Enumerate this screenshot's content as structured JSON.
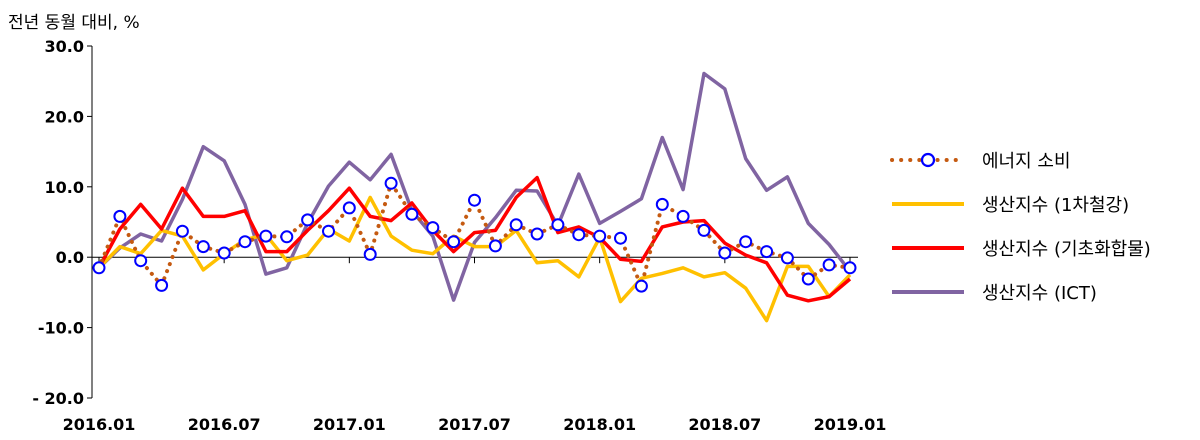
{
  "chart_data": {
    "type": "line",
    "ylabel": "전년 동월 대비, %",
    "ylim": [
      -20,
      30
    ],
    "yticks": [
      30,
      20,
      10,
      0,
      -10,
      -20
    ],
    "ytick_labels": [
      "30.0",
      "20.0",
      "10.0",
      "0.0",
      "-10.0",
      "- 20.0"
    ],
    "xtick_labels": [
      "2016.01",
      "2016.07",
      "2017.01",
      "2017.07",
      "2018.01",
      "2018.07",
      "2019.01"
    ],
    "x": [
      "2016.01",
      "2016.02",
      "2016.03",
      "2016.04",
      "2016.05",
      "2016.06",
      "2016.07",
      "2016.08",
      "2016.09",
      "2016.10",
      "2016.11",
      "2016.12",
      "2017.01",
      "2017.02",
      "2017.03",
      "2017.04",
      "2017.05",
      "2017.06",
      "2017.07",
      "2017.08",
      "2017.09",
      "2017.10",
      "2017.11",
      "2017.12",
      "2018.01",
      "2018.02",
      "2018.03",
      "2018.04",
      "2018.05",
      "2018.06",
      "2018.07",
      "2018.08",
      "2018.09",
      "2018.10",
      "2018.11",
      "2018.12",
      "2019.01"
    ],
    "series": [
      {
        "name": "에너지 소비",
        "color": "#C55A11",
        "values": [
          -1.5,
          5.8,
          -0.5,
          -4.0,
          3.7,
          1.5,
          0.6,
          2.2,
          3.0,
          2.9,
          5.3,
          3.7,
          7.0,
          0.4,
          10.5,
          6.1,
          4.2,
          2.2,
          8.1,
          1.6,
          4.6,
          3.3,
          4.6,
          3.2,
          3.0,
          2.7,
          -4.1,
          7.5,
          5.8,
          3.8,
          0.6,
          2.2,
          0.8,
          -0.1,
          -3.1,
          -1.1,
          -1.5
        ]
      },
      {
        "name": "생산지수 (1차철강)",
        "color": "#FFC000",
        "values": [
          -1.5,
          1.5,
          0.5,
          3.8,
          3.0,
          -1.8,
          0.5,
          2.5,
          3.2,
          -0.5,
          0.3,
          4.0,
          2.3,
          8.5,
          3.0,
          1.0,
          0.5,
          3.0,
          1.5,
          1.5,
          3.8,
          -0.8,
          -0.5,
          -2.8,
          2.8,
          -6.3,
          -3.0,
          -2.3,
          -1.5,
          -2.8,
          -2.2,
          -4.4,
          -9.0,
          -1.3,
          -1.3,
          -5.6,
          -2.5
        ]
      },
      {
        "name": "생산지수 (기초화합물)",
        "color": "#FF0000",
        "values": [
          -1.5,
          4.0,
          7.5,
          4.0,
          9.8,
          5.8,
          5.8,
          6.6,
          0.8,
          0.8,
          3.8,
          6.6,
          9.8,
          5.8,
          5.2,
          7.7,
          3.8,
          0.8,
          3.5,
          3.8,
          8.5,
          11.3,
          3.5,
          4.3,
          2.8,
          -0.3,
          -0.6,
          4.3,
          5.0,
          5.2,
          2.0,
          0.3,
          -0.8,
          -5.4,
          -6.2,
          -5.6,
          -3.1
        ]
      },
      {
        "name": "생산지수 (ICT)",
        "color": "#8064A2",
        "values": [
          -1.5,
          1.3,
          3.3,
          2.3,
          8.2,
          15.7,
          13.7,
          7.5,
          -2.4,
          -1.5,
          4.8,
          10.1,
          13.5,
          11.0,
          14.6,
          6.6,
          3.0,
          -6.1,
          2.1,
          5.6,
          9.5,
          9.4,
          4.5,
          11.8,
          4.8,
          6.5,
          8.3,
          17.0,
          9.6,
          26.1,
          23.9,
          14.0,
          9.5,
          11.4,
          4.8,
          1.8,
          -2.0
        ]
      }
    ],
    "grid": false,
    "legend_position": "right"
  }
}
